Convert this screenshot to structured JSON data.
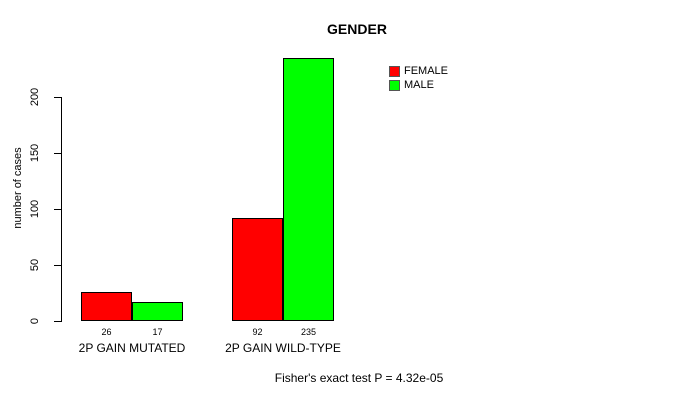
{
  "chart_data": {
    "type": "bar",
    "title": "GENDER",
    "xlabel": "",
    "ylabel": "number of cases",
    "categories": [
      "2P GAIN MUTATED",
      "2P GAIN WILD-TYPE"
    ],
    "series": [
      {
        "name": "FEMALE",
        "color": "#ff0000",
        "values": [
          26,
          92
        ]
      },
      {
        "name": "MALE",
        "color": "#00ff00",
        "values": [
          17,
          235
        ]
      }
    ],
    "yticks": [
      0,
      50,
      100,
      150,
      200
    ],
    "ylim": [
      0,
      236
    ],
    "grid": false,
    "legend_position": "top-right",
    "value_labels_shown": true,
    "annotation": "Fisher's exact test P = 4.32e-05"
  },
  "colors": {
    "background": "#ffffff",
    "axis": "#000000",
    "bar_border": "#000000",
    "female": "#ff0000",
    "male": "#00ff00"
  }
}
